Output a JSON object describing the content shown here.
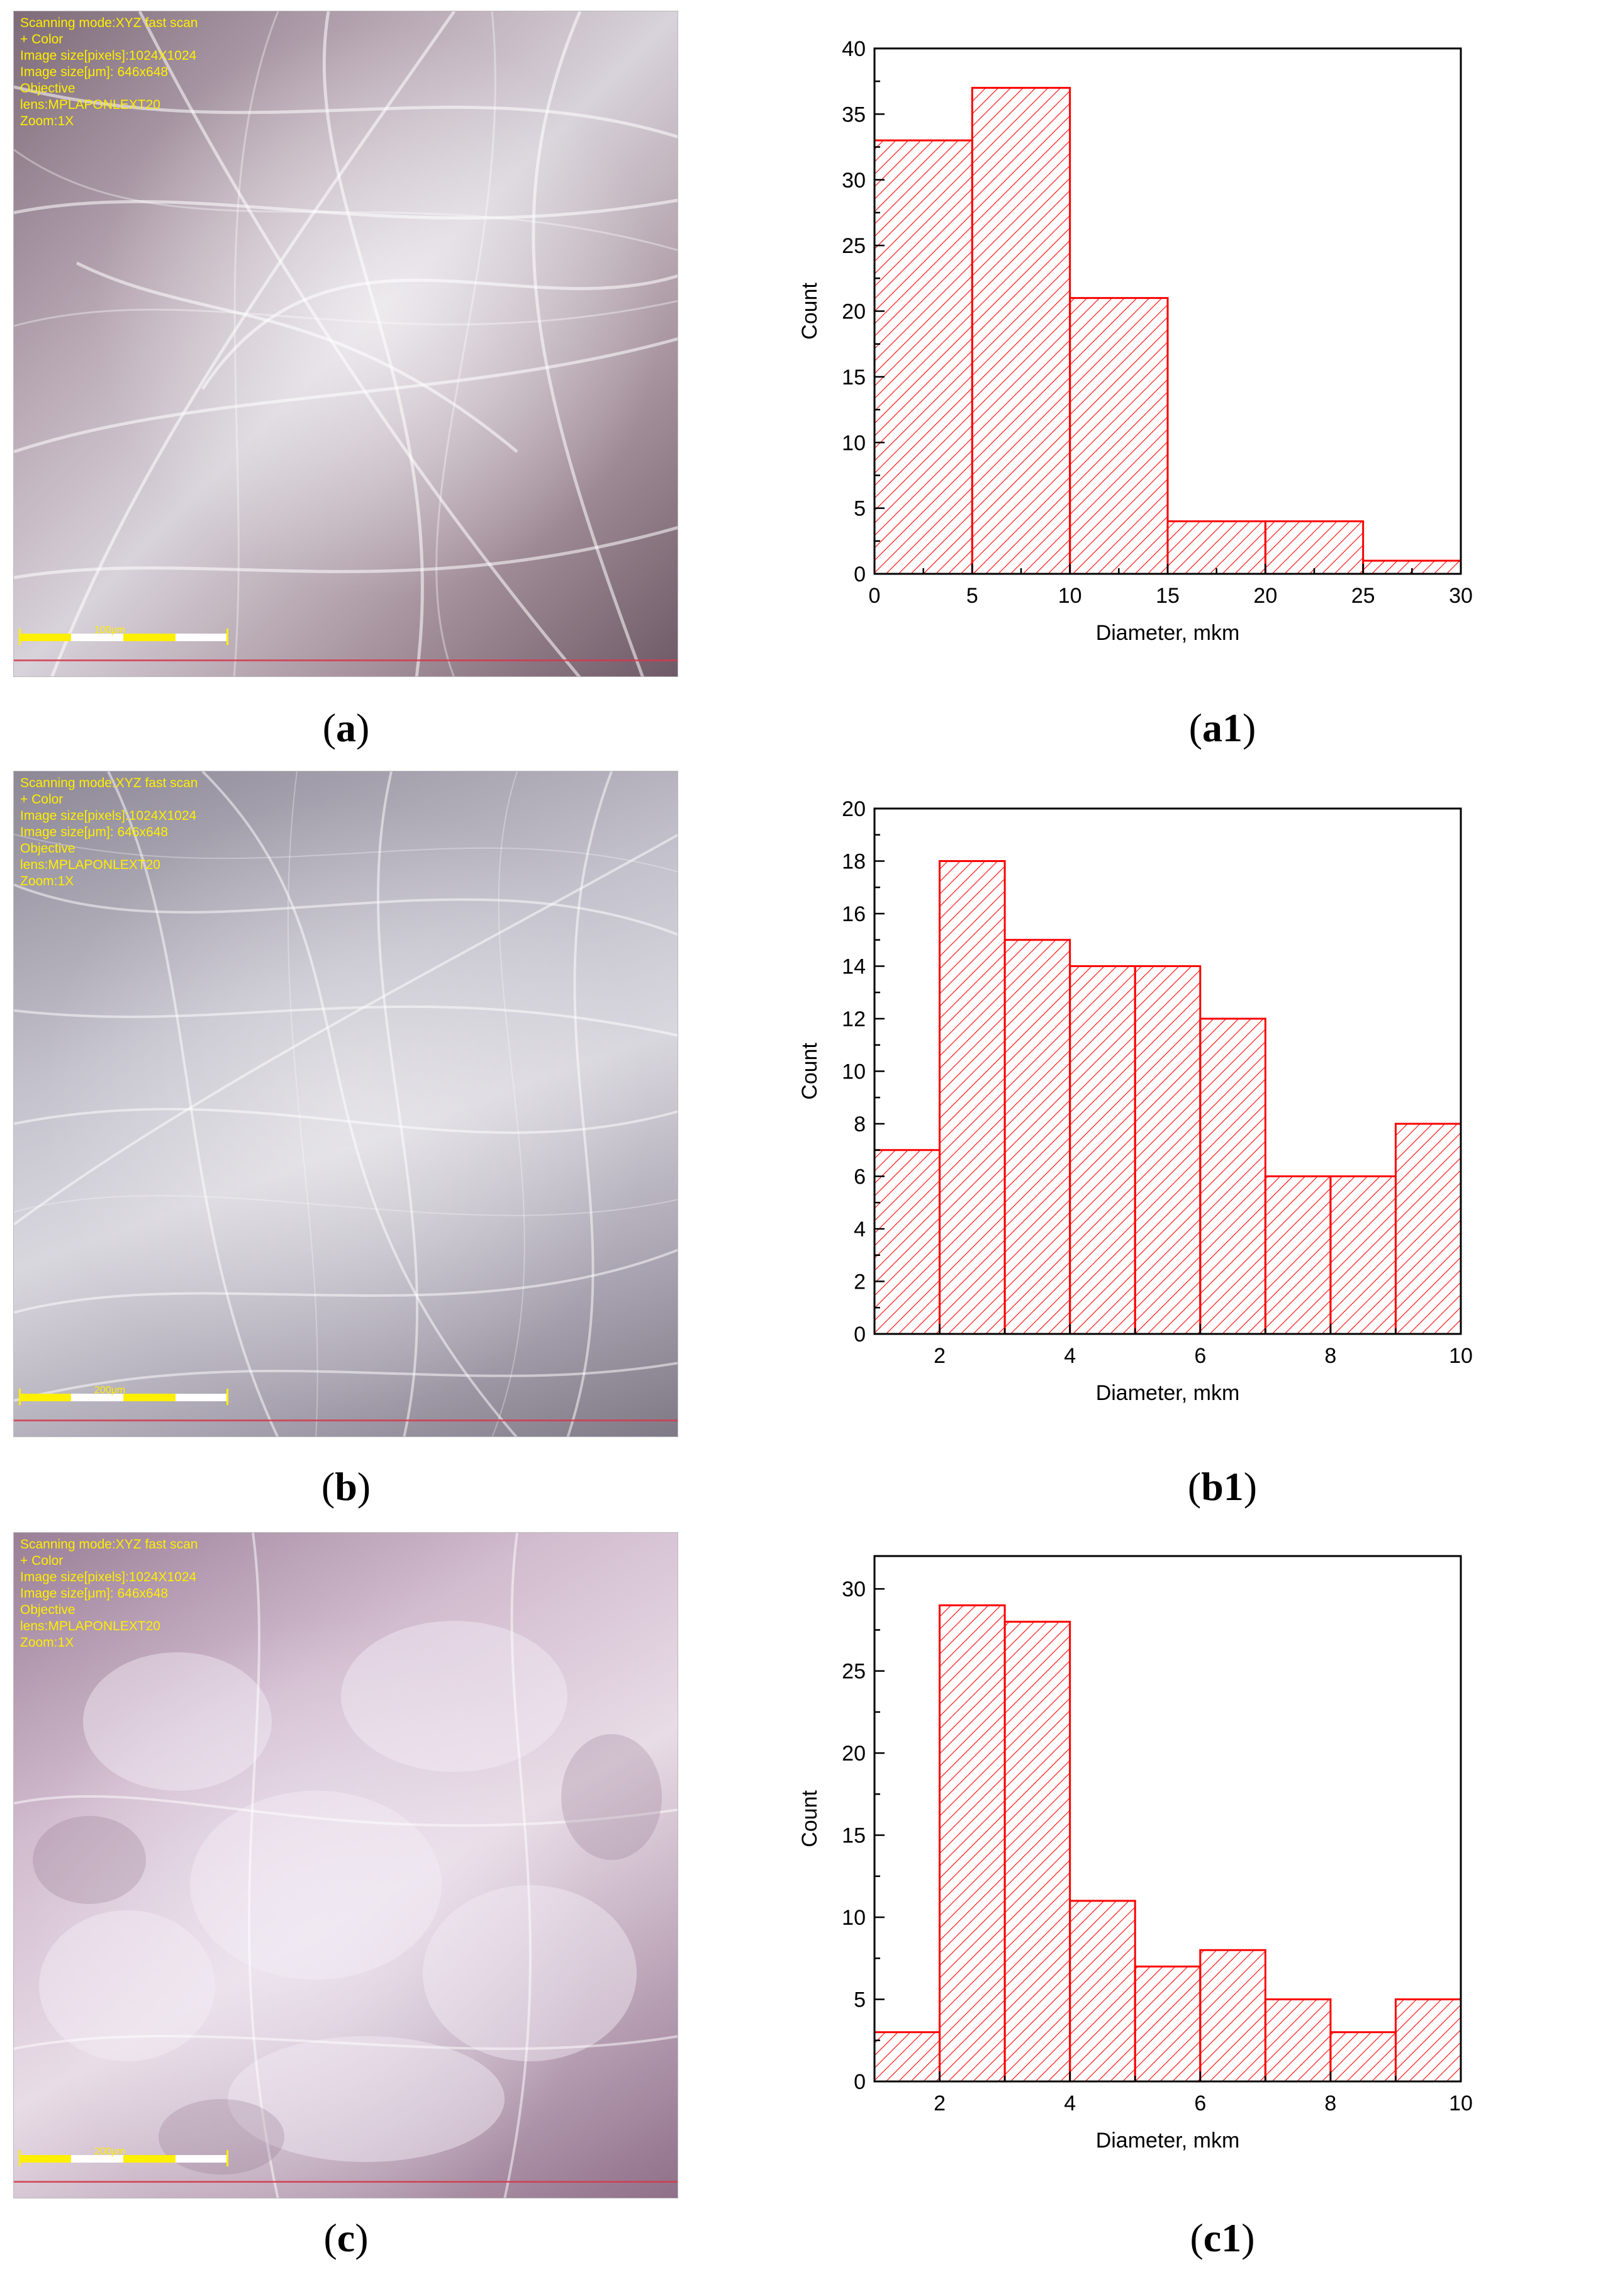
{
  "micrographs": [
    {
      "overlay_lines": [
        "Scanning mode:XYZ fast scan",
        "+ Color",
        "Image size[pixels]:1024X1024",
        "Image size[μm]: 646x648",
        "Objective",
        "lens:MPLAPONLEXT20",
        "Zoom:1X"
      ],
      "scale_label": "100μm",
      "caption": {
        "open": "(",
        "letter": "a",
        "close": ")"
      }
    },
    {
      "overlay_lines": [
        "Scanning mode:XYZ fast scan",
        "+ Color",
        "Image size[pixels]:1024X1024",
        "Image size[μm]: 646x648",
        "Objective",
        "lens:MPLAPONLEXT20",
        "Zoom:1X"
      ],
      "scale_label": "200μm",
      "caption": {
        "open": "(",
        "letter": "b",
        "close": ")"
      }
    },
    {
      "overlay_lines": [
        "Scanning mode:XYZ fast scan",
        "+ Color",
        "Image size[pixels]:1024X1024",
        "Image size[μm]: 646x648",
        "Objective",
        "lens:MPLAPONLEXT20",
        "Zoom:1X"
      ],
      "scale_label": "200μm",
      "caption": {
        "open": "(",
        "letter": "c",
        "close": ")"
      }
    }
  ],
  "chart_data": [
    {
      "type": "bar",
      "caption": {
        "open": "(",
        "letter": "a1",
        "close": ")"
      },
      "bins": [
        [
          0,
          5
        ],
        [
          5,
          10
        ],
        [
          10,
          15
        ],
        [
          15,
          20
        ],
        [
          20,
          25
        ],
        [
          25,
          30
        ]
      ],
      "values": [
        33,
        37,
        21,
        4,
        4,
        1
      ],
      "xlabel": "Diameter, mkm",
      "ylabel": "Count",
      "xlim": [
        0,
        30
      ],
      "ylim": [
        0,
        40
      ],
      "xticks": [
        0,
        5,
        10,
        15,
        20,
        25,
        30
      ],
      "yticks": [
        0,
        5,
        10,
        15,
        20,
        25,
        30,
        35,
        40
      ],
      "color": "#ff0000",
      "fill": "diagonal-hatch",
      "grid": false
    },
    {
      "type": "bar",
      "caption": {
        "open": "(",
        "letter": "b1",
        "close": ")"
      },
      "bins": [
        [
          1,
          2
        ],
        [
          2,
          3
        ],
        [
          3,
          4
        ],
        [
          4,
          5
        ],
        [
          5,
          6
        ],
        [
          6,
          7
        ],
        [
          7,
          8
        ],
        [
          8,
          9
        ],
        [
          9,
          10
        ]
      ],
      "values": [
        7,
        18,
        15,
        14,
        14,
        12,
        6,
        6,
        8
      ],
      "xlabel": "Diameter, mkm",
      "ylabel": "Count",
      "xlim": [
        1,
        10
      ],
      "ylim": [
        0,
        20
      ],
      "xticks": [
        2,
        4,
        6,
        8,
        10
      ],
      "yticks": [
        0,
        2,
        4,
        6,
        8,
        10,
        12,
        14,
        16,
        18,
        20
      ],
      "color": "#ff0000",
      "fill": "diagonal-hatch",
      "grid": false
    },
    {
      "type": "bar",
      "caption": {
        "open": "(",
        "letter": "c1",
        "close": ")"
      },
      "bins": [
        [
          1,
          2
        ],
        [
          2,
          3
        ],
        [
          3,
          4
        ],
        [
          4,
          5
        ],
        [
          5,
          6
        ],
        [
          6,
          7
        ],
        [
          7,
          8
        ],
        [
          8,
          9
        ],
        [
          9,
          10
        ]
      ],
      "values": [
        3,
        29,
        28,
        11,
        7,
        8,
        5,
        3,
        5
      ],
      "xlabel": "Diameter, mkm",
      "ylabel": "Count",
      "xlim": [
        1,
        10
      ],
      "ylim": [
        0,
        32
      ],
      "xticks": [
        2,
        4,
        6,
        8,
        10
      ],
      "yticks": [
        0,
        5,
        10,
        15,
        20,
        25,
        30
      ],
      "color": "#ff0000",
      "fill": "diagonal-hatch",
      "grid": false
    }
  ]
}
